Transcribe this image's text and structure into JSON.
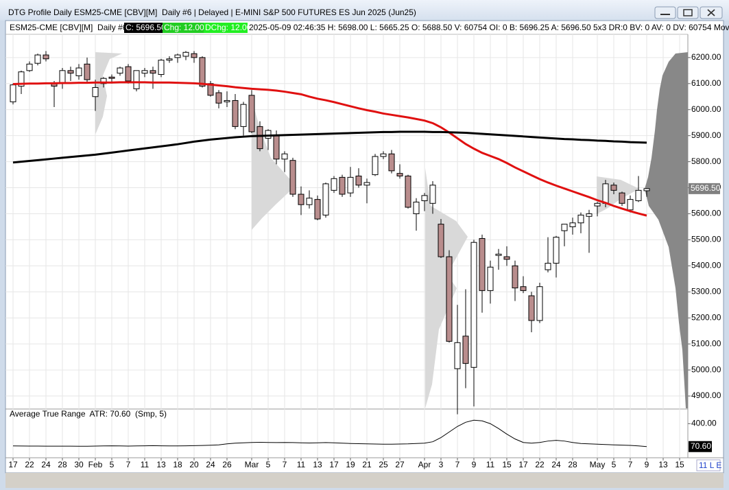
{
  "window": {
    "title": "DTG Profile Daily ESM25-CME [CBV][M]  Daily #6 | Delayed | E-MINI S&P 500 FUTURES ES Jun 2025 (Jun25)",
    "status": "11 L E"
  },
  "chart_data": [
    {
      "type": "candlestick",
      "header": {
        "symbol": "ESM25-CME [CBV][M]  Daily #6",
        "close": "C: 5696.50",
        "change": "Chg: 12.00",
        "dchange": "DChg: 12.00",
        "details": "2025-05-09 02:46:35 H: 5698.00 L: 5665.25 O: 5688.50 V: 60754 OI: 0 B: 5696.25 A: 5696.50 5x3 DR:0 BV: 0 AV: 0 DV: 60754 Mov"
      },
      "categories": [
        "17",
        null,
        "22",
        null,
        "24",
        null,
        "28",
        null,
        "30",
        null,
        "Feb",
        null,
        "5",
        null,
        "7",
        null,
        "11",
        null,
        "13",
        null,
        "18",
        null,
        "20",
        null,
        "24",
        null,
        "26",
        null,
        null,
        "Mar",
        null,
        "5",
        null,
        "7",
        null,
        "11",
        null,
        "13",
        null,
        "17",
        null,
        "19",
        null,
        "21",
        null,
        "25",
        null,
        "27",
        null,
        null,
        "Apr",
        null,
        "3",
        null,
        "7",
        null,
        "9",
        null,
        "11",
        null,
        "15",
        null,
        "17",
        null,
        "22",
        null,
        "24",
        null,
        "28",
        null,
        null,
        "May",
        null,
        "5",
        null,
        "7",
        null,
        "9",
        null,
        "13",
        null,
        "15"
      ],
      "ohlc": {
        "open": [
          6030,
          6090,
          6150,
          6178,
          6210,
          6100,
          6100,
          6150,
          6130,
          6175,
          6050,
          6100,
          6125,
          6140,
          6165,
          6080,
          6140,
          6150,
          6135,
          6190,
          6200,
          6205,
          6215,
          6200,
          6100,
          6065,
          6030,
          6035,
          5935,
          6055,
          5935,
          5890,
          5900,
          5810,
          5805,
          5675,
          5635,
          5655,
          5595,
          5690,
          5740,
          5680,
          5745,
          5710,
          5750,
          5820,
          5830,
          5755,
          5745,
          5600,
          5650,
          5640,
          5560,
          5435,
          5005,
          5130,
          5010,
          5505,
          5305,
          5440,
          5435,
          5400,
          5320,
          5285,
          5190,
          5385,
          5410,
          5535,
          5550,
          5565,
          5590,
          5630,
          5640,
          5710,
          5680,
          5615,
          5650,
          5688.5,
          null,
          null,
          null,
          null
        ],
        "high": [
          6100,
          6150,
          6185,
          6215,
          6225,
          6110,
          6160,
          6165,
          6175,
          6200,
          6115,
          6125,
          6135,
          6165,
          6175,
          6150,
          6160,
          6165,
          6195,
          6205,
          6215,
          6225,
          6225,
          6205,
          6110,
          6075,
          6070,
          6060,
          6030,
          6075,
          5955,
          5925,
          5920,
          5840,
          5815,
          5705,
          5690,
          5670,
          5720,
          5745,
          5750,
          5780,
          5775,
          5735,
          5830,
          5840,
          5845,
          5790,
          5750,
          5660,
          5680,
          5725,
          5580,
          5460,
          5250,
          5310,
          5500,
          5520,
          5420,
          5465,
          5475,
          5420,
          5360,
          5300,
          5335,
          5510,
          5515,
          5560,
          5585,
          5605,
          5615,
          5645,
          5730,
          5720,
          5685,
          5670,
          5745,
          5698,
          null,
          null,
          null,
          null
        ],
        "low": [
          6020,
          6060,
          6145,
          6170,
          6185,
          6010,
          6080,
          6110,
          6115,
          6100,
          5995,
          6085,
          6100,
          6130,
          6100,
          6070,
          6125,
          6080,
          6125,
          6180,
          6180,
          6190,
          6180,
          6085,
          6050,
          6005,
          6010,
          5925,
          5900,
          5910,
          5840,
          5845,
          5790,
          5760,
          5665,
          5595,
          5620,
          5575,
          5585,
          5680,
          5665,
          5665,
          5700,
          5640,
          5745,
          5810,
          5755,
          5735,
          5620,
          5535,
          5610,
          5600,
          5430,
          5105,
          4830,
          4930,
          4860,
          5220,
          5255,
          5385,
          5400,
          5265,
          5295,
          5145,
          5180,
          5375,
          5355,
          5475,
          5520,
          5525,
          5450,
          5590,
          5625,
          5675,
          5630,
          5605,
          5645,
          5665.25,
          null,
          null,
          null,
          null
        ],
        "close": [
          6095,
          6145,
          6175,
          6210,
          6195,
          6090,
          6150,
          6140,
          6160,
          6115,
          6085,
          6120,
          6120,
          6160,
          6110,
          6150,
          6150,
          6140,
          6190,
          6195,
          6210,
          6220,
          6200,
          6090,
          6055,
          6025,
          6035,
          5935,
          6020,
          5915,
          5850,
          5920,
          5810,
          5830,
          5675,
          5635,
          5660,
          5580,
          5715,
          5735,
          5675,
          5740,
          5710,
          5720,
          5820,
          5830,
          5765,
          5745,
          5625,
          5645,
          5670,
          5710,
          5435,
          5110,
          5105,
          5025,
          5490,
          5305,
          5395,
          5445,
          5425,
          5315,
          5305,
          5190,
          5320,
          5410,
          5510,
          5560,
          5565,
          5595,
          5600,
          5640,
          5715,
          5690,
          5640,
          5655,
          5690,
          5696.5,
          null,
          null,
          null,
          null
        ]
      },
      "up_color": "#ffffff",
      "down_color": "#b98d8d",
      "overlays": [
        {
          "color": "#e01010",
          "values": [
            6098,
            6099,
            6100,
            6100,
            6101,
            6101,
            6102,
            6102,
            6103,
            6103,
            6104,
            6104,
            6104,
            6105,
            6105,
            6105,
            6105,
            6104,
            6104,
            6104,
            6103,
            6102,
            6101,
            6099,
            6096,
            6093,
            6090,
            6086,
            6083,
            6080,
            6078,
            6076,
            6073,
            6069,
            6064,
            6059,
            6050,
            6042,
            6036,
            6029,
            6021,
            6013,
            6005,
            5998,
            5992,
            5985,
            5980,
            5975,
            5970,
            5964,
            5958,
            5948,
            5932,
            5912,
            5890,
            5868,
            5850,
            5834,
            5822,
            5810,
            5795,
            5778,
            5763,
            5748,
            5733,
            5720,
            5708,
            5697,
            5686,
            5675,
            5664,
            5652,
            5642,
            5630,
            5620,
            5610,
            5601,
            5593,
            null,
            null,
            null,
            null
          ]
        },
        {
          "color": "#000000",
          "values": [
            5797,
            5800,
            5803,
            5806,
            5809,
            5812,
            5815,
            5818,
            5821,
            5824,
            5827,
            5831,
            5835,
            5839,
            5843,
            5847,
            5851,
            5855,
            5859,
            5863,
            5867,
            5872,
            5877,
            5881,
            5885,
            5888,
            5891,
            5894,
            5896,
            5898,
            5899,
            5900,
            5901,
            5902,
            5903,
            5904,
            5905,
            5906,
            5907,
            5908,
            5909,
            5910,
            5911,
            5912,
            5913,
            5914,
            5914,
            5915,
            5915,
            5915,
            5915,
            5914,
            5914,
            5913,
            5912,
            5911,
            5909,
            5907,
            5905,
            5903,
            5901,
            5899,
            5897,
            5895,
            5893,
            5891,
            5889,
            5887,
            5886,
            5884,
            5883,
            5881,
            5880,
            5878,
            5877,
            5875,
            5874,
            5873,
            null,
            null,
            null,
            null
          ]
        }
      ],
      "ylim": [
        4850,
        6255
      ],
      "yticks": [
        {
          "value": 6200,
          "label": "6200.00"
        },
        {
          "value": 6100,
          "label": "6100.00"
        },
        {
          "value": 6000,
          "label": "6000.00"
        },
        {
          "value": 5900,
          "label": "5900.00"
        },
        {
          "value": 5800,
          "label": "5800.00"
        },
        {
          "value": 5700,
          "label": "5700.00"
        },
        {
          "value": 5600,
          "label": "5600.00"
        },
        {
          "value": 5500,
          "label": "5500.00"
        },
        {
          "value": 5400,
          "label": "5400.00"
        },
        {
          "value": 5300,
          "label": "5300.00"
        },
        {
          "value": 5200,
          "label": "5200.00"
        },
        {
          "value": 5100,
          "label": "5100.00"
        },
        {
          "value": 5000,
          "label": "5000.00"
        },
        {
          "value": 4900,
          "label": "4900.00"
        }
      ],
      "last_price": {
        "value": 5696.5,
        "label": "5696.50"
      },
      "grid": true
    },
    {
      "type": "line",
      "title": "Average True Range  ATR: 70.60  (Smp, 5)",
      "color": "#000000",
      "values": [
        80,
        79,
        78,
        78,
        77,
        77,
        76,
        76,
        75,
        75,
        78,
        80,
        82,
        80,
        78,
        80,
        82,
        84,
        82,
        80,
        80,
        82,
        84,
        86,
        90,
        95,
        110,
        120,
        125,
        130,
        132,
        130,
        128,
        130,
        128,
        125,
        122,
        125,
        128,
        125,
        120,
        115,
        112,
        110,
        108,
        105,
        105,
        108,
        110,
        115,
        120,
        140,
        200,
        280,
        360,
        420,
        450,
        440,
        400,
        330,
        250,
        180,
        130,
        120,
        130,
        150,
        160,
        150,
        130,
        115,
        110,
        105,
        100,
        95,
        92,
        88,
        80,
        70.6,
        null,
        null,
        null,
        null
      ],
      "ylim": [
        -80,
        650
      ],
      "yticks": [
        {
          "value": 400,
          "label": "400.00"
        }
      ],
      "last_value": {
        "value": 70.6,
        "label": "70.60"
      }
    }
  ]
}
